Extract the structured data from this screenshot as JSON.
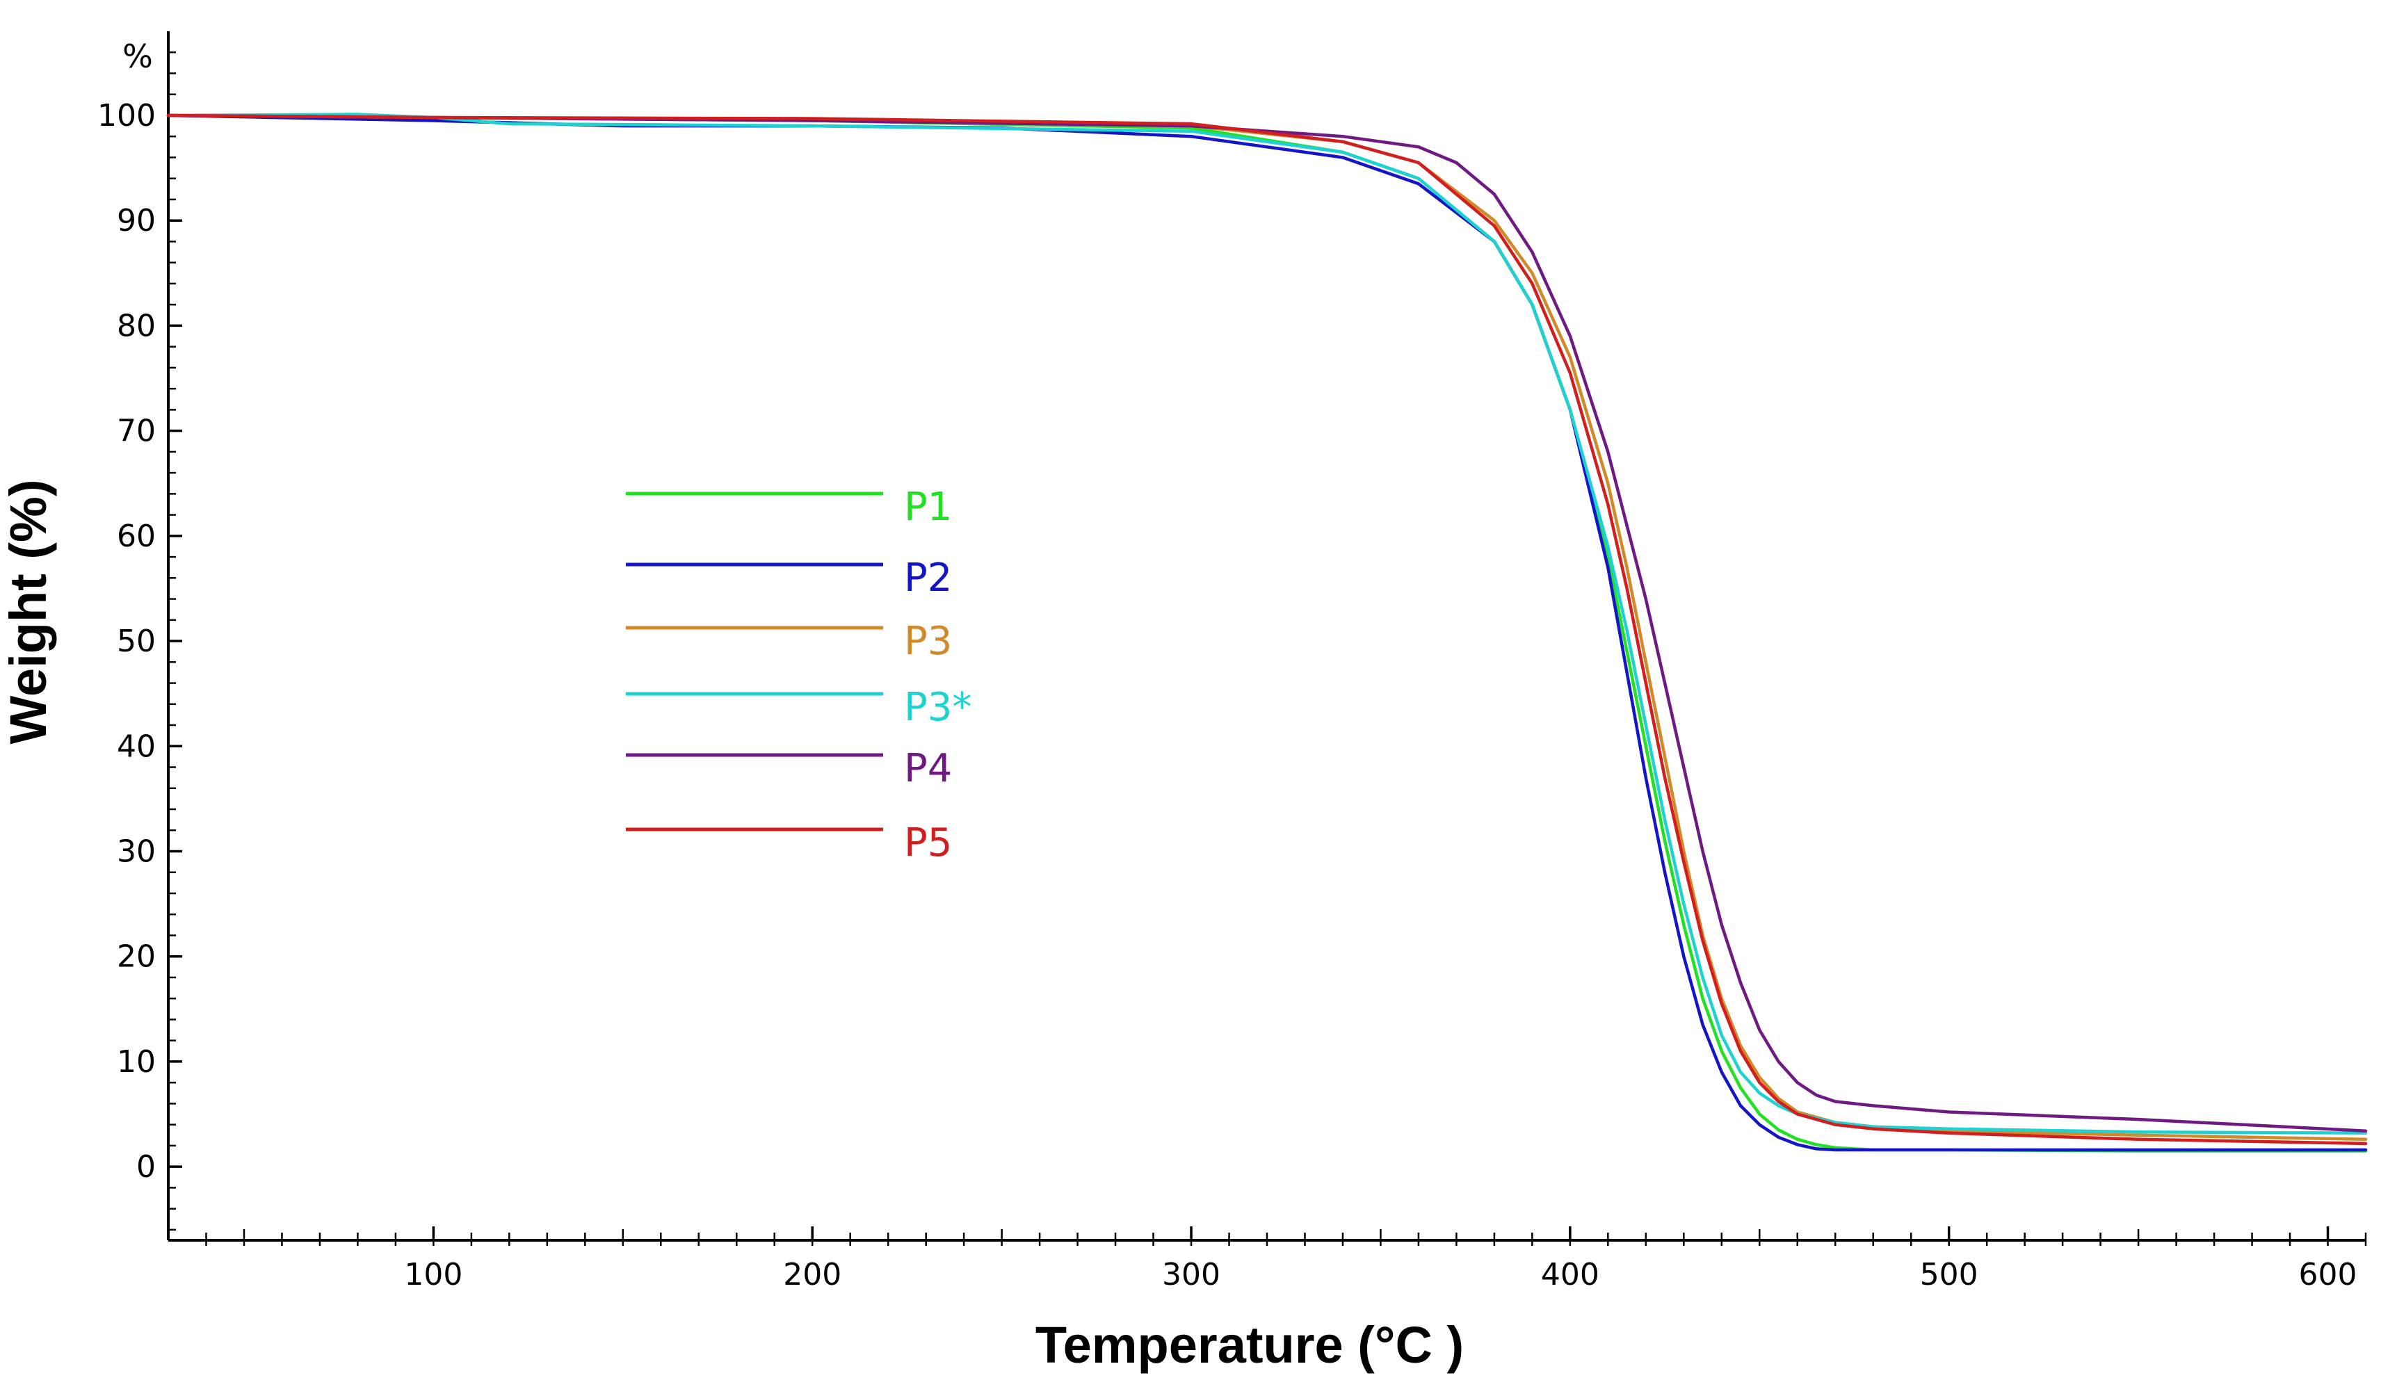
{
  "chart_data": {
    "type": "line",
    "title": "",
    "xlabel": "Temperature (°C )",
    "ylabel": "Weight (%)",
    "y_unit_label": "%",
    "xlim": [
      30,
      610
    ],
    "ylim": [
      -7,
      108
    ],
    "x_ticks": [
      100,
      200,
      300,
      400,
      500,
      600
    ],
    "y_ticks": [
      0,
      10,
      20,
      30,
      40,
      50,
      60,
      70,
      80,
      90,
      100
    ],
    "legend_position": "center-left",
    "series": [
      {
        "name": "P1",
        "color": "#22e022",
        "x": [
          30,
          100,
          200,
          300,
          340,
          360,
          380,
          390,
          400,
          410,
          415,
          420,
          425,
          430,
          435,
          440,
          445,
          450,
          455,
          460,
          465,
          470,
          480,
          500,
          550,
          610
        ],
        "y": [
          100,
          99.8,
          99.5,
          98.8,
          96.5,
          94,
          88,
          82,
          72,
          58,
          49,
          40,
          31,
          23,
          16,
          11,
          7.5,
          5,
          3.5,
          2.6,
          2.1,
          1.8,
          1.6,
          1.6,
          1.5,
          1.5
        ]
      },
      {
        "name": "P2",
        "color": "#1414c8",
        "x": [
          30,
          100,
          150,
          200,
          250,
          300,
          340,
          360,
          380,
          390,
          400,
          410,
          415,
          420,
          425,
          430,
          435,
          440,
          445,
          450,
          455,
          460,
          465,
          470,
          480,
          500,
          550,
          610
        ],
        "y": [
          100,
          99.5,
          99,
          99,
          98.8,
          98,
          96,
          93.5,
          88,
          82,
          72,
          57,
          47,
          37,
          28,
          20,
          13.5,
          9,
          5.8,
          4,
          2.8,
          2.1,
          1.7,
          1.6,
          1.6,
          1.6,
          1.6,
          1.6
        ]
      },
      {
        "name": "P3",
        "color": "#d08a2a",
        "x": [
          30,
          100,
          200,
          300,
          340,
          360,
          380,
          390,
          400,
          410,
          415,
          420,
          425,
          430,
          435,
          440,
          445,
          450,
          455,
          460,
          470,
          480,
          500,
          550,
          610
        ],
        "y": [
          100,
          99.8,
          99.5,
          99,
          97.5,
          95.5,
          90,
          85,
          77,
          65,
          57,
          48,
          39,
          30,
          22,
          16,
          11.5,
          8.5,
          6.5,
          5.2,
          4.2,
          3.8,
          3.4,
          3,
          2.6
        ]
      },
      {
        "name": "P3*",
        "color": "#1ed2d2",
        "x": [
          30,
          80,
          100,
          120,
          200,
          300,
          340,
          360,
          380,
          390,
          400,
          410,
          415,
          420,
          425,
          430,
          435,
          440,
          445,
          450,
          455,
          460,
          470,
          480,
          500,
          550,
          610
        ],
        "y": [
          100,
          100.1,
          99.8,
          99.2,
          99,
          98.5,
          96.5,
          94,
          88,
          82,
          72,
          59,
          51,
          42,
          33,
          25,
          18,
          12.5,
          9,
          7,
          5.8,
          5,
          4.2,
          3.8,
          3.6,
          3.3,
          3.2
        ]
      },
      {
        "name": "P4",
        "color": "#6e1a82",
        "x": [
          30,
          100,
          200,
          300,
          340,
          360,
          370,
          380,
          390,
          400,
          410,
          420,
          425,
          430,
          435,
          440,
          445,
          450,
          455,
          460,
          465,
          470,
          480,
          500,
          550,
          610
        ],
        "y": [
          100,
          99.8,
          99.5,
          99,
          98,
          97,
          95.5,
          92.5,
          87,
          79,
          68,
          54,
          46,
          38,
          30,
          23,
          17.5,
          13,
          10,
          8,
          6.8,
          6.2,
          5.8,
          5.2,
          4.5,
          3.4
        ]
      },
      {
        "name": "P5",
        "color": "#d21e1e",
        "x": [
          30,
          100,
          200,
          300,
          340,
          360,
          380,
          390,
          400,
          410,
          415,
          420,
          425,
          430,
          435,
          440,
          445,
          450,
          455,
          460,
          470,
          480,
          500,
          550,
          610
        ],
        "y": [
          100,
          99.8,
          99.7,
          99.2,
          97.5,
          95.5,
          89.5,
          84,
          75.5,
          63,
          55,
          46,
          37,
          29,
          21.5,
          15.5,
          11,
          8,
          6.2,
          5,
          4,
          3.6,
          3.2,
          2.6,
          2.2
        ]
      }
    ]
  }
}
